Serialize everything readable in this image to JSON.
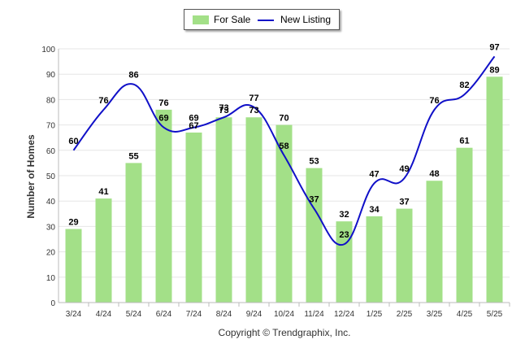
{
  "chart_data": {
    "type": "bar",
    "categories": [
      "3/24",
      "4/24",
      "5/24",
      "6/24",
      "7/24",
      "8/24",
      "9/24",
      "10/24",
      "11/24",
      "12/24",
      "1/25",
      "2/25",
      "3/25",
      "4/25",
      "5/25"
    ],
    "series": [
      {
        "name": "For Sale",
        "type": "bar",
        "values": [
          29,
          41,
          55,
          76,
          67,
          73,
          73,
          70,
          53,
          32,
          34,
          37,
          48,
          61,
          89
        ]
      },
      {
        "name": "New Listing",
        "type": "line",
        "values": [
          60,
          76,
          86,
          69,
          69,
          73,
          77,
          58,
          37,
          23,
          47,
          49,
          76,
          82,
          97
        ]
      }
    ],
    "ylabel": "Number of Homes",
    "xlabel": "",
    "ylim": [
      0,
      100
    ],
    "yticks": [
      0,
      10,
      20,
      30,
      40,
      50,
      60,
      70,
      80,
      90,
      100
    ],
    "grid": true,
    "legend_position": "top-center",
    "colors": {
      "bar": "#a3e088",
      "line": "#1010c8",
      "grid": "#e6e6e6",
      "axis": "#bbbbbb"
    }
  },
  "footer": "Copyright © Trendgraphix, Inc."
}
